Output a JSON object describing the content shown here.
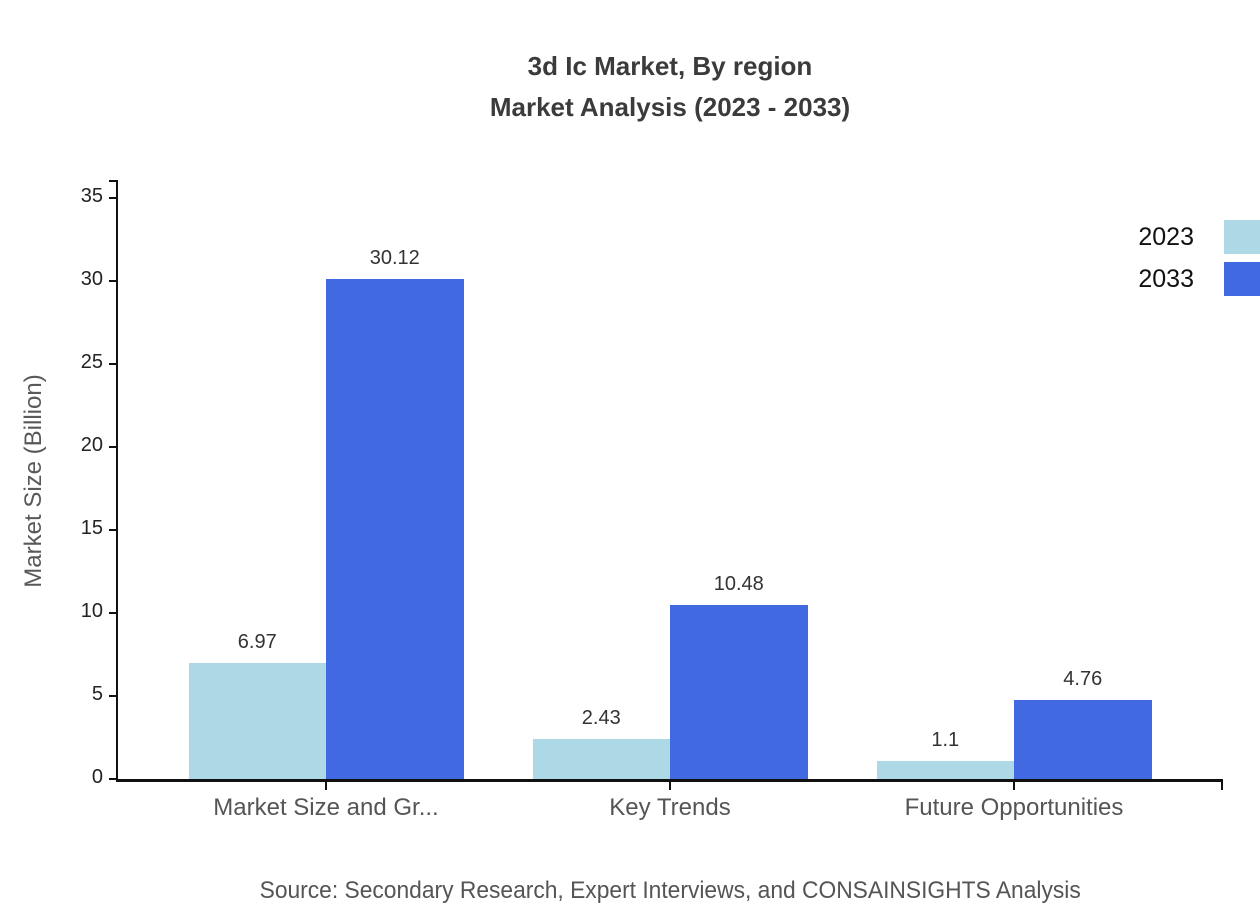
{
  "title": {
    "line1": "3d Ic Market, By region",
    "line2": "Market Analysis (2023 - 2033)"
  },
  "source_note": "Source: Secondary Research, Expert Interviews, and CONSAINSIGHTS Analysis",
  "colors": {
    "series_2023": "#ADD8E6",
    "series_2033": "#4169E1",
    "axis": "#111111",
    "title_text": "#3b3b3b",
    "tick_text": "#222222",
    "category_text": "#555555",
    "value_text": "#333333",
    "source_text": "#555555"
  },
  "chart_data": {
    "type": "bar",
    "title": "3d Ic Market, By region Market Analysis (2023 - 2033)",
    "categories": [
      "Market Size and Gr...",
      "Key Trends",
      "Future Opportunities"
    ],
    "series": [
      {
        "name": "2023",
        "color": "#ADD8E6",
        "values": [
          6.97,
          2.43,
          1.1
        ]
      },
      {
        "name": "2033",
        "color": "#4169E1",
        "values": [
          30.12,
          10.48,
          4.76
        ]
      }
    ],
    "xlabel": "",
    "ylabel": "Market Size (Billion)",
    "ylim": [
      0,
      35
    ],
    "yticks": [
      0,
      5,
      10,
      15,
      20,
      25,
      30,
      35
    ],
    "grid": false,
    "value_labels_shown": true,
    "legend_position": "top-right"
  }
}
